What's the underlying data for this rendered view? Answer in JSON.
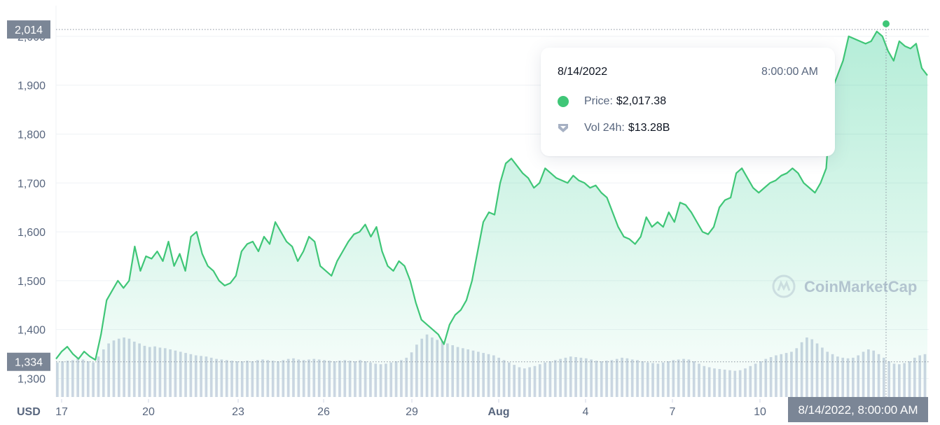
{
  "chart_data": {
    "type": "area",
    "currency": "USD",
    "ylim": [
      1262,
      2060
    ],
    "y_ticks": [
      "1,300",
      "1,400",
      "1,500",
      "1,600",
      "1,700",
      "1,800",
      "1,900",
      "2,000"
    ],
    "x_ticks": [
      "17",
      "20",
      "23",
      "26",
      "29",
      "Aug",
      "4",
      "7",
      "10"
    ],
    "high_marker": "2,014",
    "low_marker": "1,334",
    "crosshair_label": "8/14/2022, 8:00:00 AM",
    "watermark": "CoinMarketCap",
    "colors": {
      "line": "#3fc677",
      "fill": "#16c784",
      "volume": "#cfd6e4",
      "axis_text": "#58667e"
    },
    "series": [
      {
        "values": [
          1340,
          1355,
          1365,
          1350,
          1340,
          1355,
          1345,
          1338,
          1390,
          1460,
          1480,
          1500,
          1485,
          1500,
          1570,
          1520,
          1550,
          1545,
          1560,
          1540,
          1580,
          1530,
          1555,
          1520,
          1590,
          1600,
          1555,
          1530,
          1520,
          1500,
          1490,
          1495,
          1510,
          1560,
          1575,
          1580,
          1560,
          1590,
          1575,
          1620,
          1600,
          1580,
          1570,
          1540,
          1560,
          1590,
          1580,
          1530,
          1520,
          1510,
          1540,
          1560,
          1580,
          1595,
          1600,
          1615,
          1590,
          1610,
          1560,
          1530,
          1520,
          1540,
          1530,
          1500,
          1455,
          1420,
          1410,
          1400,
          1390,
          1370,
          1410,
          1430,
          1440,
          1460,
          1500,
          1560,
          1620,
          1640,
          1635,
          1700,
          1740,
          1750,
          1735,
          1720,
          1710,
          1690,
          1700,
          1730,
          1720,
          1710,
          1705,
          1700,
          1715,
          1705,
          1700,
          1690,
          1695,
          1680,
          1670,
          1640,
          1610,
          1590,
          1585,
          1575,
          1590,
          1630,
          1610,
          1620,
          1610,
          1640,
          1620,
          1660,
          1655,
          1640,
          1620,
          1600,
          1595,
          1610,
          1650,
          1665,
          1670,
          1720,
          1730,
          1710,
          1690,
          1680,
          1690,
          1700,
          1705,
          1715,
          1720,
          1730,
          1720,
          1700,
          1690,
          1680,
          1700,
          1730,
          1890,
          1920,
          1950,
          2000,
          1995,
          1990,
          1985,
          1990,
          2010,
          2000,
          1970,
          1950,
          1990,
          1980,
          1975,
          1985,
          1935,
          1920
        ]
      }
    ],
    "volume": [
      0.58,
      0.6,
      0.61,
      0.62,
      0.65,
      0.63,
      0.6,
      0.58,
      0.68,
      0.8,
      0.9,
      0.95,
      0.98,
      1.0,
      0.98,
      0.93,
      0.9,
      0.86,
      0.84,
      0.85,
      0.83,
      0.82,
      0.8,
      0.78,
      0.76,
      0.74,
      0.72,
      0.7,
      0.69,
      0.68,
      0.66,
      0.64,
      0.63,
      0.62,
      0.61,
      0.6,
      0.6,
      0.61,
      0.6,
      0.62,
      0.63,
      0.62,
      0.61,
      0.6,
      0.62,
      0.64,
      0.65,
      0.63,
      0.62,
      0.63,
      0.64,
      0.63,
      0.62,
      0.61,
      0.6,
      0.61,
      0.62,
      0.61,
      0.6,
      0.62,
      0.6,
      0.58,
      0.56,
      0.55,
      0.56,
      0.58,
      0.6,
      0.62,
      0.66,
      0.75,
      0.88,
      0.98,
      1.05,
      1.0,
      0.96,
      0.94,
      0.9,
      0.87,
      0.84,
      0.82,
      0.8,
      0.78,
      0.76,
      0.74,
      0.72,
      0.7,
      0.66,
      0.62,
      0.58,
      0.54,
      0.5,
      0.48,
      0.5,
      0.52,
      0.55,
      0.58,
      0.6,
      0.62,
      0.64,
      0.66,
      0.68,
      0.67,
      0.66,
      0.65,
      0.63,
      0.61,
      0.6,
      0.61,
      0.62,
      0.64,
      0.66,
      0.65,
      0.63,
      0.62,
      0.6,
      0.58,
      0.57,
      0.56,
      0.58,
      0.6,
      0.62,
      0.63,
      0.64,
      0.63,
      0.6,
      0.56,
      0.52,
      0.5,
      0.48,
      0.47,
      0.46,
      0.45,
      0.44,
      0.45,
      0.48,
      0.52,
      0.56,
      0.6,
      0.64,
      0.67,
      0.7,
      0.72,
      0.74,
      0.76,
      0.82,
      0.92,
      1.0,
      0.97,
      0.9,
      0.83,
      0.76,
      0.72,
      0.68,
      0.66,
      0.65,
      0.66,
      0.7,
      0.76,
      0.8,
      0.78,
      0.72,
      0.66,
      0.6,
      0.56,
      0.55,
      0.57,
      0.6,
      0.66,
      0.7,
      0.72
    ]
  },
  "tooltip": {
    "date": "8/14/2022",
    "time": "8:00:00 AM",
    "price_label": "Price:",
    "price_value": "$2,017.38",
    "vol_label": "Vol 24h:",
    "vol_value": "$13.28B"
  }
}
